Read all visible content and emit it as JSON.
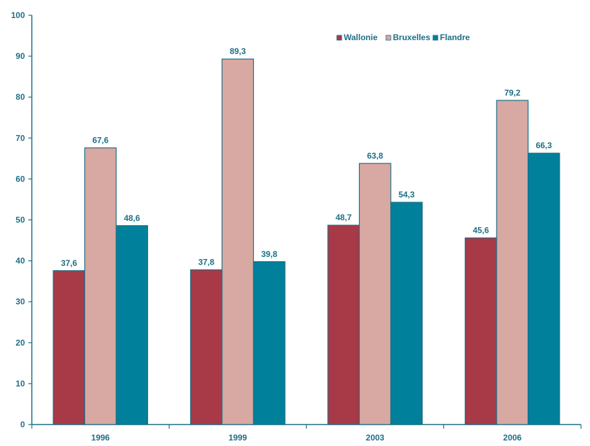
{
  "chart_data": {
    "type": "bar",
    "categories": [
      "1996",
      "1999",
      "2003",
      "2006"
    ],
    "series": [
      {
        "name": "Wallonie",
        "values": [
          37.6,
          37.8,
          48.7,
          45.6
        ],
        "value_labels": [
          "37,6",
          "37,8",
          "48,7",
          "45,6"
        ],
        "color": "#a83a48"
      },
      {
        "name": "Bruxelles",
        "values": [
          67.6,
          89.3,
          63.8,
          79.2
        ],
        "value_labels": [
          "67,6",
          "89,3",
          "63,8",
          "79,2"
        ],
        "color": "#d8a8a2"
      },
      {
        "name": "Flandre",
        "values": [
          48.6,
          39.8,
          54.3,
          66.3
        ],
        "value_labels": [
          "48,6",
          "39,8",
          "54,3",
          "66,3"
        ],
        "color": "#00809a"
      }
    ],
    "yticks": [
      "0",
      "10",
      "20",
      "30",
      "40",
      "50",
      "60",
      "70",
      "80",
      "90",
      "100"
    ],
    "ylim": [
      0,
      100
    ],
    "grid": false,
    "legend_position": "top-right",
    "title": "",
    "xlabel": "",
    "ylabel": ""
  },
  "colors": {
    "axis": "#1d6f86",
    "text": "#1d6f86"
  }
}
